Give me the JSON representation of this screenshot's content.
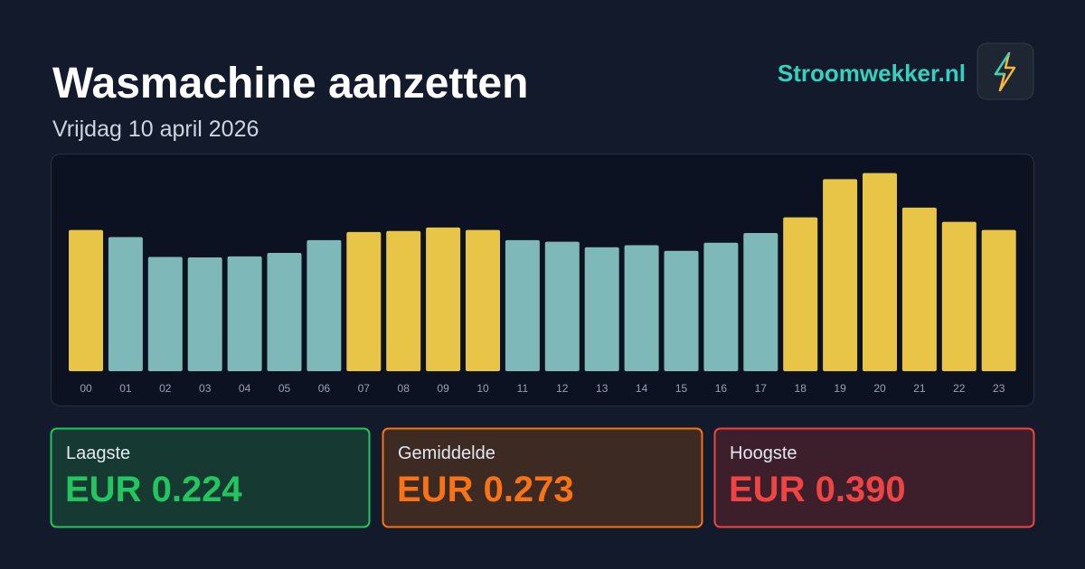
{
  "header": {
    "title": "Wasmachine aanzetten",
    "subtitle": "Vrijdag 10 april 2026",
    "brand": "Stroomwekker.nl"
  },
  "chart_data": {
    "type": "bar",
    "categories": [
      "00",
      "01",
      "02",
      "03",
      "04",
      "05",
      "06",
      "07",
      "08",
      "09",
      "10",
      "11",
      "12",
      "13",
      "14",
      "15",
      "16",
      "17",
      "18",
      "19",
      "20",
      "21",
      "22",
      "23"
    ],
    "values": [
      0.278,
      0.264,
      0.225,
      0.224,
      0.226,
      0.233,
      0.258,
      0.274,
      0.276,
      0.283,
      0.278,
      0.258,
      0.255,
      0.244,
      0.248,
      0.237,
      0.253,
      0.272,
      0.303,
      0.378,
      0.39,
      0.322,
      0.294,
      0.278
    ],
    "colors": [
      "#e8c547",
      "#7fb8b8",
      "#7fb8b8",
      "#7fb8b8",
      "#7fb8b8",
      "#7fb8b8",
      "#7fb8b8",
      "#e8c547",
      "#e8c547",
      "#e8c547",
      "#e8c547",
      "#7fb8b8",
      "#7fb8b8",
      "#7fb8b8",
      "#7fb8b8",
      "#7fb8b8",
      "#7fb8b8",
      "#7fb8b8",
      "#e8c547",
      "#e8c547",
      "#e8c547",
      "#e8c547",
      "#e8c547",
      "#e8c547"
    ],
    "ylim": [
      0,
      0.4
    ]
  },
  "stats": [
    {
      "label": "Laagste",
      "value": "EUR 0.224",
      "color": "#22c55e"
    },
    {
      "label": "Gemiddelde",
      "value": "EUR 0.273",
      "color": "#f97316"
    },
    {
      "label": "Hoogste",
      "value": "EUR 0.390",
      "color": "#ef4444"
    }
  ]
}
